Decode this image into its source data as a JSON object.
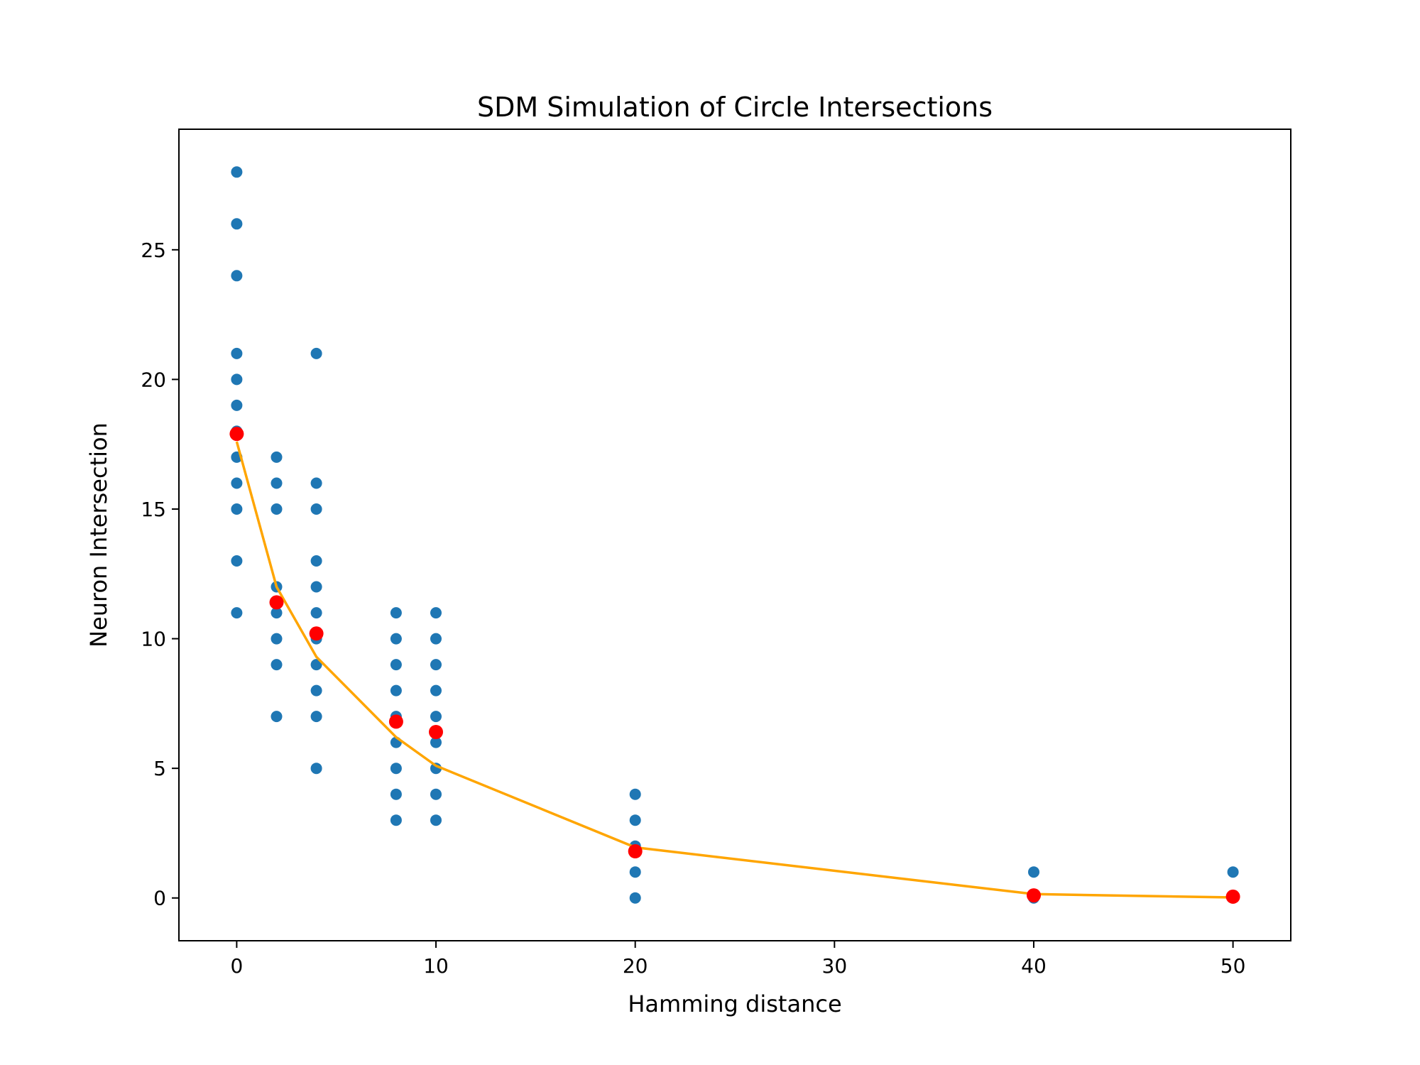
{
  "chart_data": {
    "type": "scatter",
    "title": "SDM Simulation of Circle Intersections",
    "xlabel": "Hamming distance",
    "ylabel": "Neuron Intersection",
    "xlim": [
      -2.9,
      52.9
    ],
    "ylim": [
      -1.65,
      29.65
    ],
    "xticks": [
      0,
      10,
      20,
      30,
      40,
      50
    ],
    "yticks": [
      0,
      5,
      10,
      15,
      20,
      25
    ],
    "grid": false,
    "colors": {
      "samples": "#1f77b4",
      "means": "#ff0000",
      "fit": "#ffa500",
      "frame": "#000000"
    },
    "series": [
      {
        "kind": "scatter",
        "style": "samples",
        "points": [
          [
            0,
            28
          ],
          [
            0,
            26
          ],
          [
            0,
            24
          ],
          [
            0,
            21
          ],
          [
            0,
            20
          ],
          [
            0,
            19
          ],
          [
            0,
            18
          ],
          [
            0,
            17
          ],
          [
            0,
            16
          ],
          [
            0,
            15
          ],
          [
            0,
            13
          ],
          [
            0,
            11
          ],
          [
            2,
            17
          ],
          [
            2,
            16
          ],
          [
            2,
            15
          ],
          [
            2,
            12
          ],
          [
            2,
            11
          ],
          [
            2,
            10
          ],
          [
            2,
            9
          ],
          [
            2,
            7
          ],
          [
            4,
            21
          ],
          [
            4,
            16
          ],
          [
            4,
            15
          ],
          [
            4,
            13
          ],
          [
            4,
            12
          ],
          [
            4,
            11
          ],
          [
            4,
            10
          ],
          [
            4,
            9
          ],
          [
            4,
            8
          ],
          [
            4,
            7
          ],
          [
            4,
            5
          ],
          [
            8,
            11
          ],
          [
            8,
            10
          ],
          [
            8,
            9
          ],
          [
            8,
            8
          ],
          [
            8,
            7
          ],
          [
            8,
            6
          ],
          [
            8,
            5
          ],
          [
            8,
            4
          ],
          [
            8,
            3
          ],
          [
            10,
            11
          ],
          [
            10,
            10
          ],
          [
            10,
            9
          ],
          [
            10,
            8
          ],
          [
            10,
            7
          ],
          [
            10,
            6
          ],
          [
            10,
            5
          ],
          [
            10,
            4
          ],
          [
            10,
            3
          ],
          [
            20,
            4
          ],
          [
            20,
            3
          ],
          [
            20,
            2
          ],
          [
            20,
            1
          ],
          [
            20,
            0
          ],
          [
            40,
            1
          ],
          [
            40,
            0
          ],
          [
            50,
            1
          ],
          [
            50,
            0
          ]
        ]
      },
      {
        "kind": "line",
        "style": "fit",
        "points": [
          [
            0,
            17.6
          ],
          [
            2,
            12.0
          ],
          [
            4,
            9.3
          ],
          [
            8,
            6.2
          ],
          [
            10,
            5.1
          ],
          [
            20,
            1.95
          ],
          [
            40,
            0.15
          ],
          [
            50,
            0.02
          ]
        ]
      },
      {
        "kind": "scatter",
        "style": "means",
        "points": [
          [
            0,
            17.9
          ],
          [
            2,
            11.4
          ],
          [
            4,
            10.2
          ],
          [
            8,
            6.8
          ],
          [
            10,
            6.4
          ],
          [
            20,
            1.8
          ],
          [
            40,
            0.1
          ],
          [
            50,
            0.05
          ]
        ]
      }
    ]
  }
}
